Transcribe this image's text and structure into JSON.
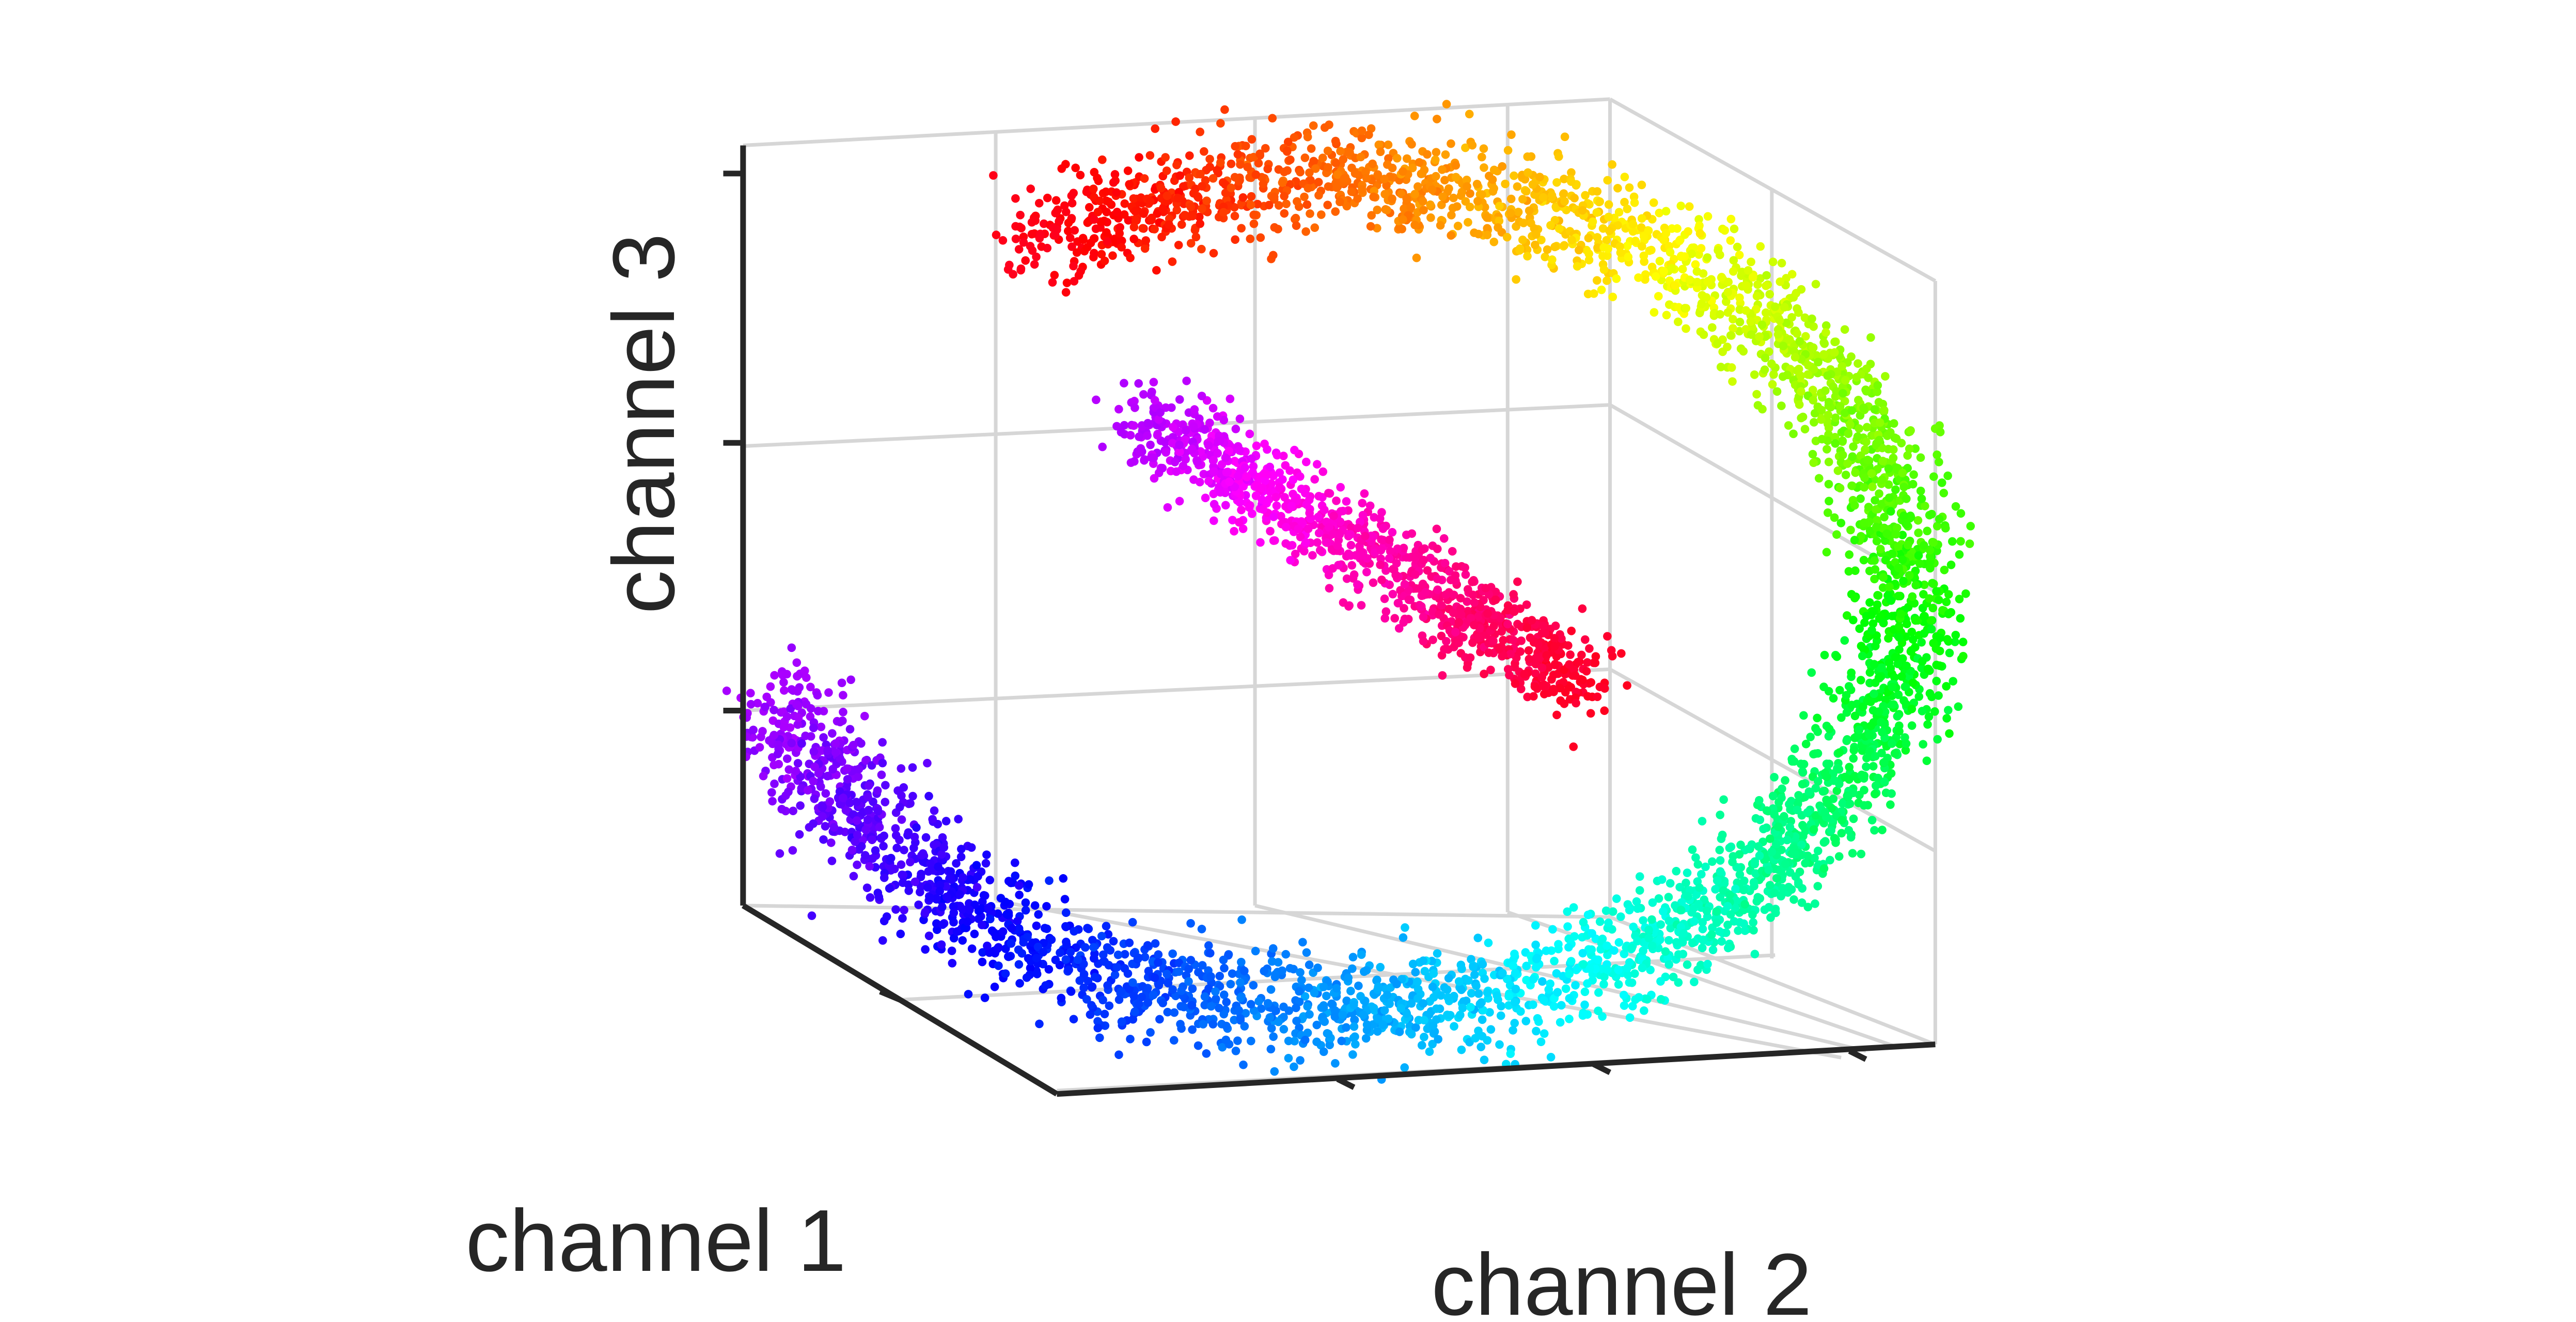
{
  "chart_data": {
    "type": "scatter",
    "dimensions": 3,
    "title": "",
    "xlabel": "channel 1",
    "ylabel": "channel 2",
    "zlabel": "channel 3",
    "tick_labels": {
      "x": [],
      "y": [],
      "z": []
    },
    "grid": true,
    "box": "back planes drawn with light grid lines",
    "colormap": "hsv (cyclic: red → yellow → green → cyan → blue → purple → magenta → red)",
    "approx_point_count": 5000,
    "structure": "points form a torus-like ring in 3D; color varies cyclically around the ring",
    "series": [
      {
        "segment": "red",
        "color": "#ff0000"
      },
      {
        "segment": "rose",
        "color": "#ff1a66"
      },
      {
        "segment": "magenta",
        "color": "#ff00ff"
      },
      {
        "segment": "purple",
        "color": "#8000ff"
      },
      {
        "segment": "blue",
        "color": "#0000ff"
      },
      {
        "segment": "azure",
        "color": "#0080ff"
      },
      {
        "segment": "cyan",
        "color": "#00ffff"
      },
      {
        "segment": "green",
        "color": "#00ff66"
      },
      {
        "segment": "lime",
        "color": "#40ff00"
      },
      {
        "segment": "yellow",
        "color": "#ffff00"
      },
      {
        "segment": "orange",
        "color": "#ff8000"
      }
    ]
  }
}
